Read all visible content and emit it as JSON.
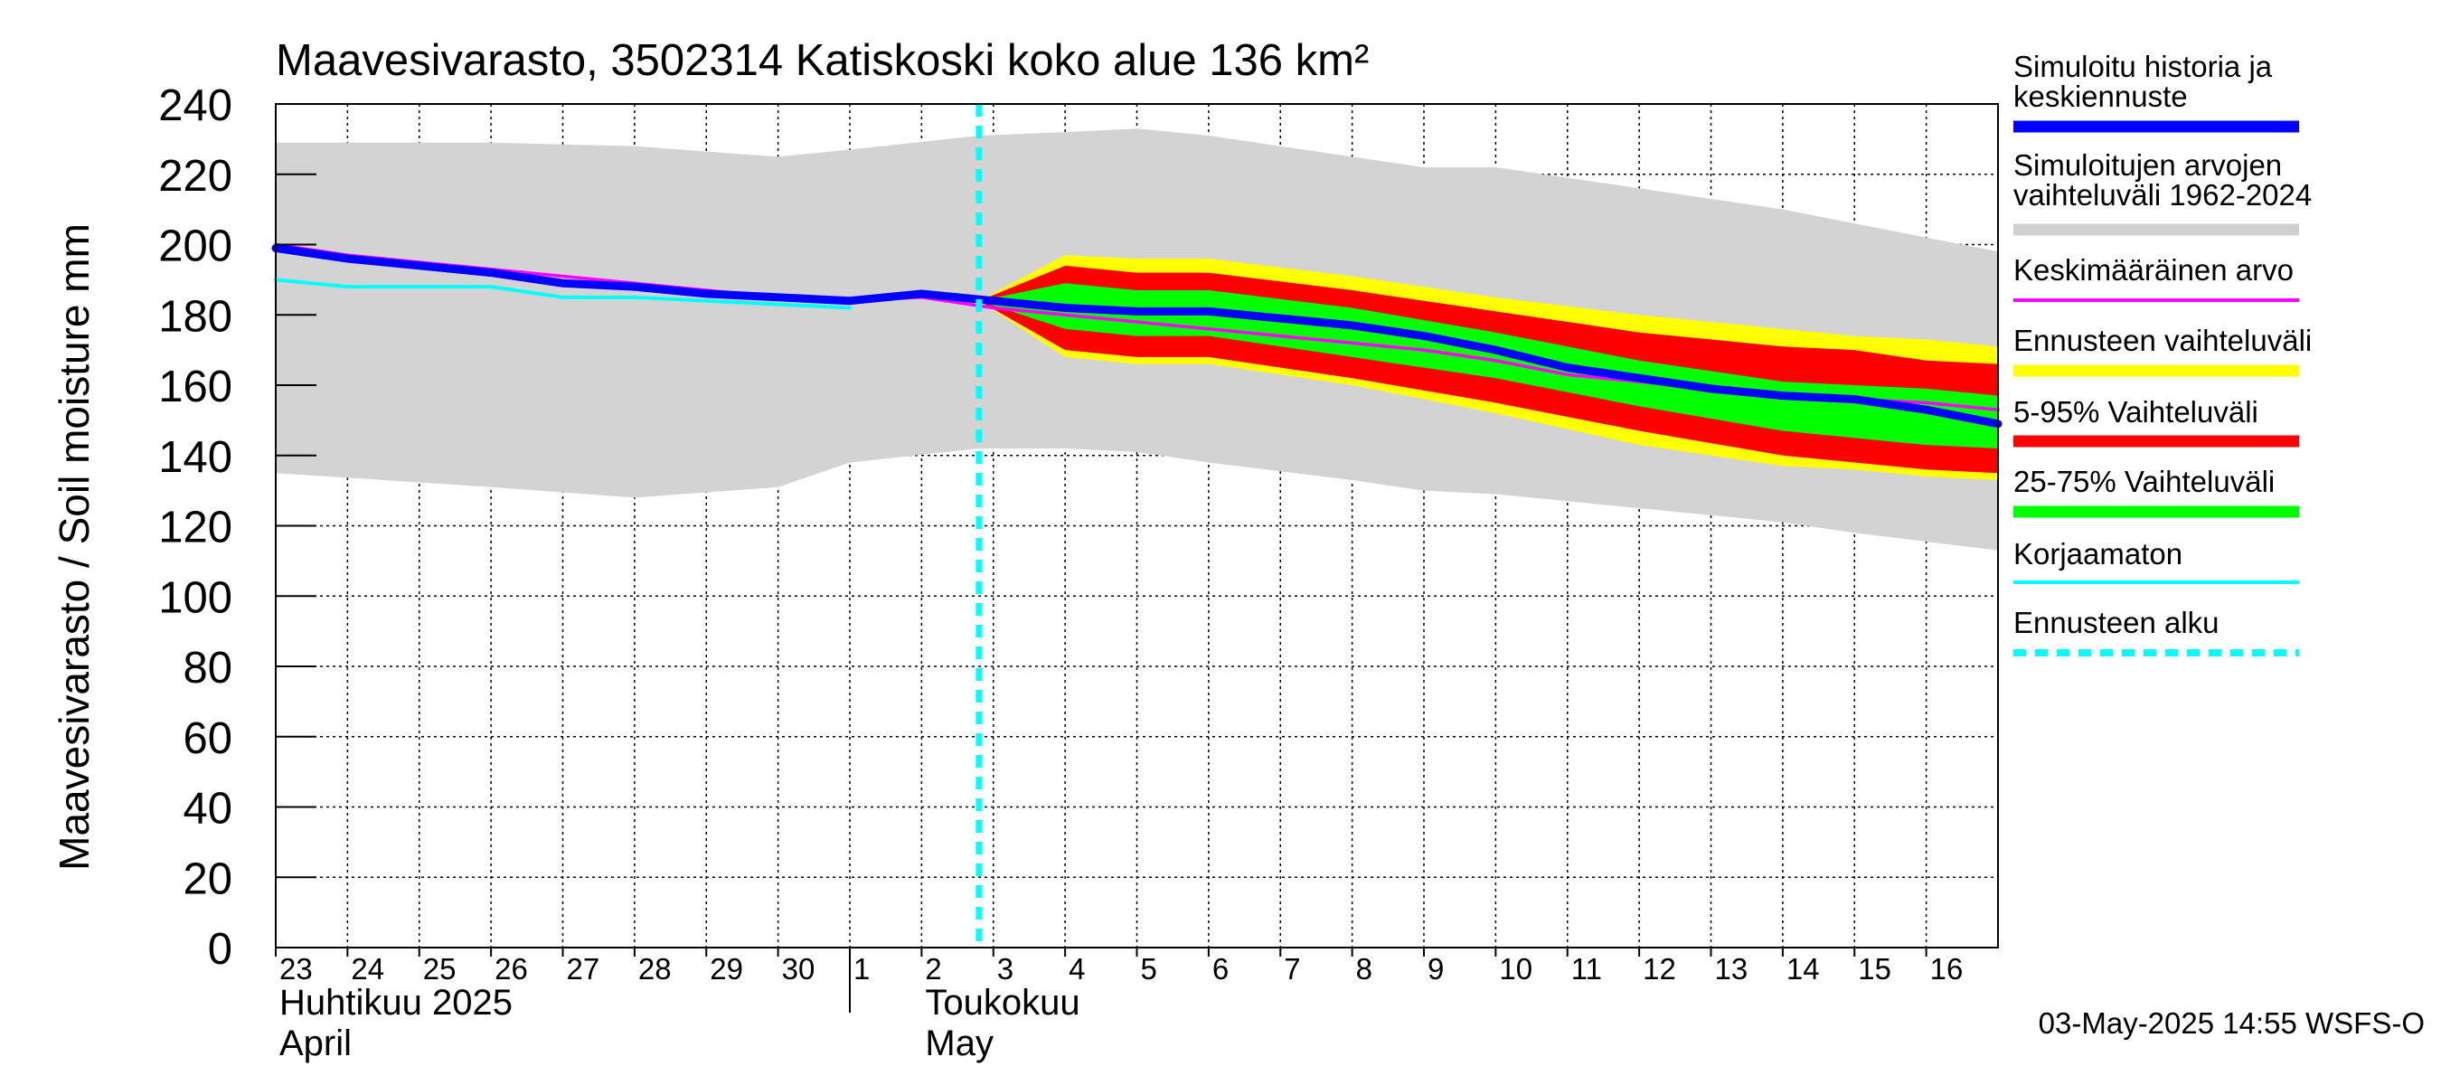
{
  "chart_data": {
    "type": "area",
    "title": "Maavesivarasto, 3502314 Katiskoski koko alue 136 km²",
    "ylabel": "Maavesivarasto / Soil moisture   mm",
    "ylim": [
      0,
      240
    ],
    "yticks": [
      0,
      20,
      40,
      60,
      80,
      100,
      120,
      140,
      160,
      180,
      200,
      220,
      240
    ],
    "x_start_day": 23,
    "x_end_day": 47,
    "day_labels": [
      {
        "x": 23,
        "label": "23"
      },
      {
        "x": 24,
        "label": "24"
      },
      {
        "x": 25,
        "label": "25"
      },
      {
        "x": 26,
        "label": "26"
      },
      {
        "x": 27,
        "label": "27"
      },
      {
        "x": 28,
        "label": "28"
      },
      {
        "x": 29,
        "label": "29"
      },
      {
        "x": 30,
        "label": "30"
      },
      {
        "x": 31,
        "label": "1"
      },
      {
        "x": 32,
        "label": "2"
      },
      {
        "x": 33,
        "label": "3"
      },
      {
        "x": 34,
        "label": "4"
      },
      {
        "x": 35,
        "label": "5"
      },
      {
        "x": 36,
        "label": "6"
      },
      {
        "x": 37,
        "label": "7"
      },
      {
        "x": 38,
        "label": "8"
      },
      {
        "x": 39,
        "label": "9"
      },
      {
        "x": 40,
        "label": "10"
      },
      {
        "x": 41,
        "label": "11"
      },
      {
        "x": 42,
        "label": "12"
      },
      {
        "x": 43,
        "label": "13"
      },
      {
        "x": 44,
        "label": "14"
      },
      {
        "x": 45,
        "label": "15"
      },
      {
        "x": 46,
        "label": "16"
      }
    ],
    "month_divider_x": 31,
    "month_labels": [
      {
        "x": 23,
        "fi": "Huhtikuu  2025",
        "en": "April"
      },
      {
        "x": 32,
        "fi": "Toukokuu",
        "en": "May"
      }
    ],
    "forecast_start_x": 32.8,
    "legend": [
      {
        "label": "Simuloitu historia ja|keskiennuste",
        "color": "#0000ff",
        "style": "solid"
      },
      {
        "label": "Simuloitujen arvojen|vaihteluväli 1962-2024",
        "color": "#d0d0d0",
        "style": "solid"
      },
      {
        "label": "Keskimääräinen arvo",
        "color": "#ff00ff",
        "style": "thin"
      },
      {
        "label": "Ennusteen vaihteluväli",
        "color": "#ffff00",
        "style": "solid"
      },
      {
        "label": "5-95% Vaihteluväli",
        "color": "#ff0000",
        "style": "solid"
      },
      {
        "label": "25-75% Vaihteluväli",
        "color": "#00ff00",
        "style": "solid"
      },
      {
        "label": "Korjaamaton",
        "color": "#00ffff",
        "style": "thin"
      },
      {
        "label": "Ennusteen alku",
        "color": "#00ffff",
        "style": "dashed"
      }
    ],
    "footer": "03-May-2025 14:55 WSFS-O",
    "series": [
      {
        "name": "Simuloitujen arvojen vaihteluväli 1962-2024",
        "kind": "band",
        "color": "#d3d3d3",
        "x": [
          23,
          26,
          28,
          30,
          31,
          32.8,
          34,
          35,
          36,
          38,
          39,
          40,
          42,
          44,
          45,
          47
        ],
        "upper": [
          229,
          229,
          228,
          225,
          227,
          231,
          232,
          233,
          231,
          225,
          222,
          222,
          216,
          210,
          206,
          198
        ],
        "lower": [
          135,
          131,
          128,
          131,
          138,
          142,
          142,
          141,
          138,
          133,
          130,
          129,
          125,
          121,
          118,
          113
        ]
      },
      {
        "name": "Ennusteen vaihteluväli",
        "kind": "band",
        "color": "#ffff00",
        "x": [
          32.8,
          34,
          35,
          36,
          38,
          40,
          42,
          44,
          45,
          46,
          47
        ],
        "upper": [
          184,
          197,
          196,
          196,
          191,
          185,
          180,
          176,
          174,
          173,
          171
        ],
        "lower": [
          184,
          168,
          166,
          166,
          160,
          152,
          143,
          137,
          136,
          134,
          133
        ]
      },
      {
        "name": "5-95% Vaihteluväli",
        "kind": "band",
        "color": "#ff0000",
        "x": [
          32.8,
          34,
          35,
          36,
          38,
          40,
          42,
          44,
          45,
          46,
          47
        ],
        "upper": [
          184,
          194,
          192,
          192,
          187,
          181,
          175,
          171,
          170,
          167,
          166
        ],
        "lower": [
          184,
          170,
          168,
          168,
          162,
          155,
          147,
          140,
          138,
          136,
          135
        ]
      },
      {
        "name": "25-75% Vaihteluväli",
        "kind": "band",
        "color": "#00ff00",
        "x": [
          32.8,
          34,
          35,
          36,
          38,
          40,
          42,
          44,
          45,
          46,
          47
        ],
        "upper": [
          184,
          189,
          187,
          187,
          182,
          175,
          167,
          161,
          160,
          159,
          157
        ],
        "lower": [
          184,
          176,
          174,
          174,
          168,
          162,
          154,
          147,
          145,
          143,
          142
        ]
      },
      {
        "name": "Korjaamaton",
        "kind": "line",
        "color": "#00ffff",
        "width": 4,
        "x": [
          23,
          24,
          25,
          26,
          27,
          28,
          29,
          30,
          31
        ],
        "values": [
          190,
          188,
          188,
          188,
          185,
          185,
          184,
          183,
          182
        ]
      },
      {
        "name": "Keskimääräinen arvo",
        "kind": "line",
        "color": "#ff00ff",
        "width": 3.5,
        "x": [
          23,
          24,
          25,
          26,
          27,
          28,
          29,
          30,
          31,
          32,
          33,
          34,
          35,
          36,
          37,
          38,
          39,
          40,
          41,
          42,
          43,
          44,
          45,
          46,
          47
        ],
        "values": [
          200,
          197,
          195,
          193,
          191,
          189,
          187,
          185,
          184,
          185,
          182,
          180,
          178,
          176,
          174,
          172,
          170,
          167,
          163,
          161,
          159,
          157,
          156,
          155,
          153
        ]
      },
      {
        "name": "Simuloitu historia ja keskiennuste",
        "kind": "line",
        "color": "#0000ff",
        "width": 9,
        "x": [
          23,
          24,
          25,
          26,
          27,
          28,
          29,
          30,
          31,
          32,
          33,
          34,
          35,
          36,
          37,
          38,
          39,
          40,
          41,
          42,
          43,
          44,
          45,
          46,
          47
        ],
        "values": [
          199,
          196,
          194,
          192,
          189,
          188,
          186,
          185,
          184,
          186,
          184,
          182,
          181,
          181,
          179,
          177,
          174,
          170,
          165,
          162,
          159,
          157,
          156,
          153,
          149
        ]
      }
    ]
  }
}
